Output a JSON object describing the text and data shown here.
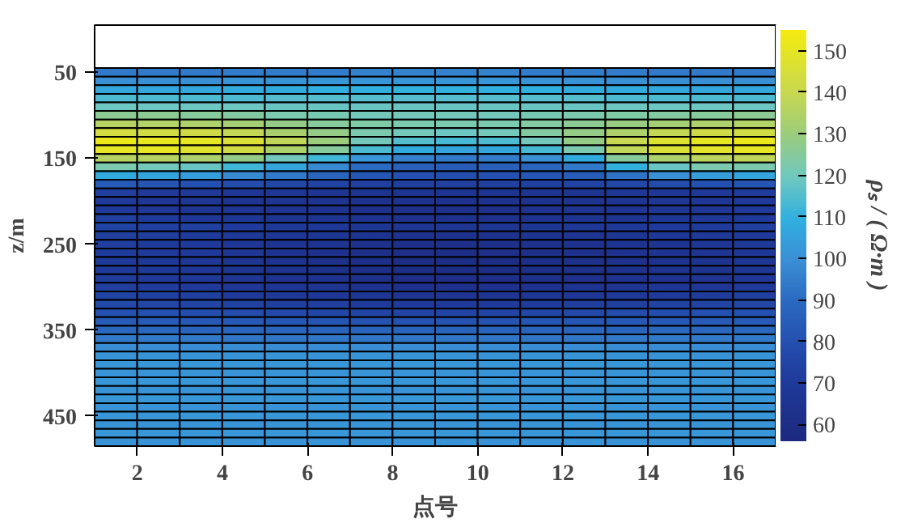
{
  "chart_data": {
    "type": "heatmap",
    "xlabel": "点号",
    "ylabel": "z/m",
    "clabel": "ρₛ / ( Ω·m )",
    "x": [
      1.5,
      2.5,
      3.5,
      4.5,
      5.5,
      6.5,
      7.5,
      8.5,
      9.5,
      10.5,
      11.5,
      12.5,
      13.5,
      14.5,
      15.5,
      16.5
    ],
    "y": [
      50,
      60,
      70,
      80,
      90,
      100,
      110,
      120,
      130,
      140,
      150,
      160,
      170,
      180,
      190,
      200,
      210,
      220,
      230,
      240,
      250,
      260,
      270,
      280,
      290,
      300,
      310,
      320,
      330,
      340,
      350,
      360,
      370,
      380,
      390,
      400,
      410,
      420,
      430,
      440,
      450,
      460,
      470,
      480
    ],
    "xlim": [
      1,
      17
    ],
    "ylim": [
      485,
      -5
    ],
    "xticks": [
      2,
      4,
      6,
      8,
      10,
      12,
      14,
      16
    ],
    "yticks": [
      50,
      150,
      250,
      350,
      450
    ],
    "clim": [
      56,
      155
    ],
    "cticks": [
      60,
      70,
      80,
      90,
      100,
      110,
      120,
      130,
      140,
      150
    ],
    "cells": [
      [
        94,
        94,
        94,
        95,
        95,
        95,
        96,
        96,
        96,
        96,
        95,
        95,
        95,
        94,
        94,
        94
      ],
      [
        100,
        100,
        100,
        101,
        101,
        102,
        102,
        102,
        102,
        102,
        101,
        101,
        100,
        100,
        100,
        100
      ],
      [
        107,
        107,
        107,
        108,
        108,
        109,
        109,
        110,
        110,
        109,
        109,
        108,
        108,
        107,
        107,
        107
      ],
      [
        114,
        114,
        114,
        114,
        115,
        115,
        115,
        115,
        115,
        115,
        115,
        115,
        114,
        114,
        114,
        114
      ],
      [
        119,
        119,
        119,
        119,
        118,
        118,
        118,
        118,
        118,
        118,
        118,
        118,
        119,
        119,
        119,
        119
      ],
      [
        126,
        126,
        125,
        124,
        122,
        121,
        120,
        120,
        120,
        120,
        121,
        122,
        123,
        124,
        125,
        126
      ],
      [
        136,
        135,
        134,
        132,
        128,
        125,
        123,
        122,
        122,
        122,
        124,
        126,
        129,
        132,
        134,
        135
      ],
      [
        144,
        143,
        142,
        139,
        133,
        128,
        122,
        120,
        119,
        120,
        124,
        128,
        134,
        139,
        142,
        143
      ],
      [
        152,
        151,
        150,
        146,
        138,
        130,
        120,
        115,
        113,
        114,
        120,
        128,
        140,
        147,
        150,
        152
      ],
      [
        150,
        150,
        148,
        143,
        134,
        125,
        114,
        108,
        106,
        107,
        113,
        122,
        138,
        146,
        149,
        150
      ],
      [
        136,
        136,
        134,
        128,
        120,
        112,
        102,
        96,
        94,
        95,
        100,
        108,
        125,
        134,
        137,
        138
      ],
      [
        122,
        120,
        118,
        112,
        106,
        98,
        90,
        86,
        85,
        86,
        88,
        94,
        110,
        118,
        122,
        122
      ],
      [
        108,
        106,
        104,
        98,
        94,
        88,
        82,
        80,
        79,
        80,
        82,
        85,
        92,
        100,
        104,
        106
      ],
      [
        84,
        82,
        80,
        78,
        76,
        74,
        72,
        72,
        72,
        72,
        73,
        74,
        76,
        78,
        80,
        82
      ],
      [
        72,
        70,
        69,
        68,
        67,
        66,
        65,
        65,
        65,
        65,
        66,
        66,
        67,
        68,
        69,
        71
      ],
      [
        70,
        68,
        67,
        66,
        66,
        65,
        64,
        64,
        64,
        64,
        64,
        65,
        66,
        67,
        68,
        70
      ],
      [
        70,
        68,
        67,
        66,
        65,
        64,
        63,
        63,
        63,
        63,
        64,
        65,
        66,
        67,
        68,
        70
      ],
      [
        72,
        70,
        68,
        67,
        66,
        65,
        64,
        63,
        63,
        63,
        64,
        65,
        66,
        67,
        68,
        70
      ],
      [
        74,
        73,
        72,
        70,
        69,
        68,
        67,
        66,
        66,
        66,
        67,
        68,
        69,
        70,
        71,
        72
      ],
      [
        73,
        72,
        71,
        69,
        68,
        67,
        65,
        64,
        64,
        64,
        65,
        66,
        67,
        68,
        69,
        70
      ],
      [
        72,
        71,
        70,
        68,
        66,
        65,
        63,
        62,
        62,
        62,
        63,
        64,
        65,
        66,
        67,
        69
      ],
      [
        71,
        70,
        69,
        67,
        65,
        63,
        62,
        61,
        60,
        61,
        62,
        63,
        64,
        65,
        66,
        68
      ],
      [
        70,
        69,
        68,
        66,
        64,
        62,
        61,
        60,
        60,
        60,
        61,
        62,
        63,
        64,
        65,
        67
      ],
      [
        70,
        69,
        68,
        66,
        64,
        62,
        61,
        60,
        60,
        60,
        61,
        62,
        63,
        64,
        65,
        67
      ],
      [
        71,
        70,
        69,
        67,
        65,
        64,
        62,
        61,
        61,
        61,
        62,
        63,
        64,
        65,
        66,
        68
      ],
      [
        72,
        71,
        70,
        68,
        67,
        66,
        64,
        63,
        63,
        63,
        64,
        65,
        66,
        67,
        68,
        70
      ],
      [
        74,
        73,
        72,
        70,
        69,
        68,
        67,
        66,
        66,
        66,
        67,
        68,
        69,
        70,
        71,
        72
      ],
      [
        77,
        76,
        75,
        74,
        73,
        72,
        71,
        70,
        70,
        70,
        71,
        72,
        73,
        74,
        75,
        76
      ],
      [
        80,
        80,
        79,
        78,
        77,
        76,
        75,
        75,
        75,
        75,
        76,
        77,
        78,
        79,
        80,
        80
      ],
      [
        84,
        84,
        83,
        83,
        82,
        82,
        81,
        81,
        81,
        81,
        82,
        82,
        83,
        83,
        84,
        84
      ],
      [
        89,
        89,
        88,
        88,
        88,
        87,
        87,
        87,
        87,
        87,
        88,
        88,
        88,
        89,
        89,
        89
      ],
      [
        94,
        94,
        94,
        93,
        93,
        93,
        93,
        93,
        93,
        93,
        93,
        93,
        94,
        94,
        94,
        94
      ],
      [
        99,
        99,
        99,
        99,
        99,
        99,
        99,
        99,
        99,
        99,
        99,
        99,
        99,
        99,
        99,
        99
      ],
      [
        101,
        101,
        101,
        101,
        101,
        101,
        101,
        101,
        101,
        101,
        101,
        101,
        101,
        101,
        101,
        101
      ],
      [
        102,
        102,
        102,
        102,
        102,
        102,
        102,
        102,
        102,
        102,
        102,
        102,
        102,
        102,
        102,
        102
      ],
      [
        101,
        101,
        101,
        101,
        101,
        101,
        101,
        101,
        101,
        101,
        101,
        101,
        101,
        101,
        101,
        101
      ],
      [
        102,
        102,
        102,
        102,
        102,
        102,
        102,
        102,
        102,
        102,
        102,
        102,
        102,
        102,
        102,
        102
      ],
      [
        101,
        101,
        101,
        101,
        101,
        101,
        101,
        101,
        101,
        101,
        101,
        101,
        101,
        101,
        101,
        101
      ],
      [
        102,
        102,
        102,
        102,
        102,
        102,
        102,
        102,
        102,
        102,
        102,
        102,
        102,
        102,
        102,
        102
      ],
      [
        101,
        101,
        101,
        101,
        101,
        101,
        101,
        101,
        101,
        101,
        101,
        101,
        101,
        101,
        101,
        101
      ],
      [
        102,
        102,
        102,
        102,
        102,
        102,
        102,
        102,
        102,
        102,
        102,
        102,
        102,
        102,
        102,
        102
      ],
      [
        101,
        101,
        101,
        101,
        101,
        101,
        101,
        101,
        101,
        101,
        101,
        101,
        101,
        101,
        101,
        101
      ],
      [
        102,
        102,
        102,
        102,
        102,
        102,
        102,
        102,
        102,
        102,
        102,
        102,
        102,
        102,
        102,
        102
      ],
      [
        101,
        101,
        101,
        101,
        101,
        101,
        101,
        101,
        101,
        101,
        101,
        101,
        101,
        101,
        101,
        101
      ]
    ]
  }
}
